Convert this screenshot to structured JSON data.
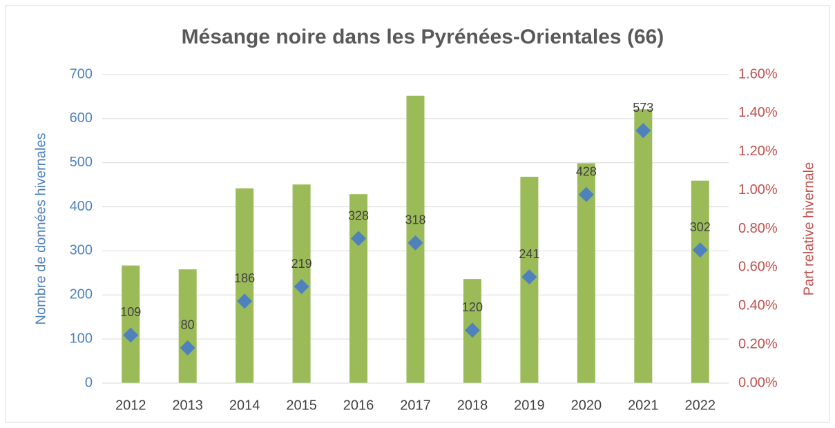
{
  "chart_data": {
    "type": "bar-scatter-combo",
    "title": "Mésange noire dans les Pyrénées-Orientales (66)",
    "y_label": "Nombre de données hivernales",
    "y2_label": "Part relative hivernale",
    "categories": [
      "2012",
      "2013",
      "2014",
      "2015",
      "2016",
      "2017",
      "2018",
      "2019",
      "2020",
      "2021",
      "2022"
    ],
    "series": [
      {
        "type": "bar",
        "axis": "y2",
        "color": "#9bbb59",
        "values": [
          0.61,
          0.59,
          1.01,
          1.03,
          0.98,
          1.49,
          0.54,
          1.07,
          1.14,
          1.42,
          1.05
        ]
      },
      {
        "type": "scatter",
        "axis": "y",
        "color": "#4f81bd",
        "values": [
          109,
          80,
          186,
          219,
          328,
          318,
          120,
          241,
          428,
          573,
          302
        ]
      }
    ],
    "ylim": [
      0,
      700
    ],
    "yticks": [
      0,
      100,
      200,
      300,
      400,
      500,
      600,
      700
    ],
    "y2lim": [
      0,
      1.6
    ],
    "y2ticks": [
      {
        "value": 0,
        "label": "0.00%"
      },
      {
        "value": 0.2,
        "label": "0.20%"
      },
      {
        "value": 0.4,
        "label": "0.40%"
      },
      {
        "value": 0.6,
        "label": "0.60%"
      },
      {
        "value": 0.8,
        "label": "0.80%"
      },
      {
        "value": 1.0,
        "label": "1.00%"
      },
      {
        "value": 1.2,
        "label": "1.20%"
      },
      {
        "value": 1.4,
        "label": "1.40%"
      },
      {
        "value": 1.6,
        "label": "1.60%"
      }
    ],
    "grid": true,
    "y_color": "#4f81bd",
    "y2_color": "#c0504d"
  }
}
